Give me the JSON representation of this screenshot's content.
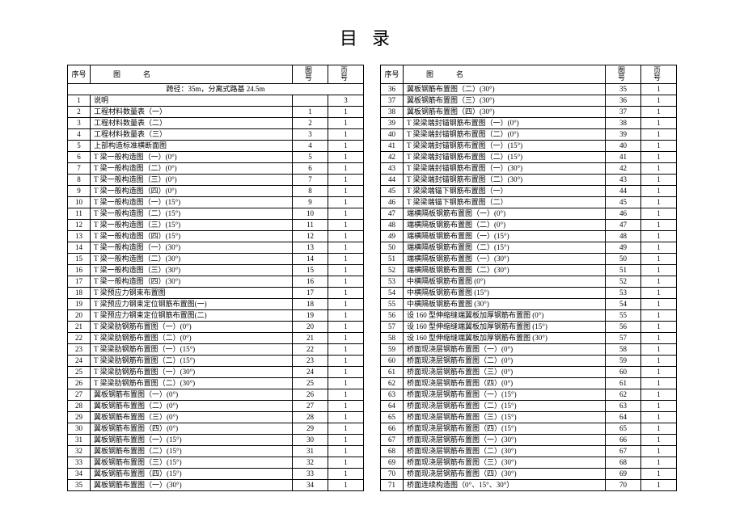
{
  "title": "目录",
  "headers": {
    "seq": "序号",
    "name": "图名",
    "fig": "图号",
    "page": "页号"
  },
  "subheader": "跨径：35m，分离式路基 24.5m",
  "left_rows": [
    {
      "seq": "1",
      "name": "说明",
      "fig": "",
      "page": "3"
    },
    {
      "seq": "2",
      "name": "工程材料数量表（一）",
      "fig": "1",
      "page": "1"
    },
    {
      "seq": "3",
      "name": "工程材料数量表（二）",
      "fig": "2",
      "page": "1"
    },
    {
      "seq": "4",
      "name": "工程材料数量表（三）",
      "fig": "3",
      "page": "1"
    },
    {
      "seq": "5",
      "name": "上部构造标准横断面图",
      "fig": "4",
      "page": "1"
    },
    {
      "seq": "6",
      "name": "T 梁一般构造图（一）(0°)",
      "fig": "5",
      "page": "1"
    },
    {
      "seq": "7",
      "name": "T 梁一般构造图（二）(0°)",
      "fig": "6",
      "page": "1"
    },
    {
      "seq": "8",
      "name": "T 梁一般构造图（三）(0°)",
      "fig": "7",
      "page": "1"
    },
    {
      "seq": "9",
      "name": "T 梁一般构造图（四）(0°)",
      "fig": "8",
      "page": "1"
    },
    {
      "seq": "10",
      "name": "T 梁一般构造图（一）(15°)",
      "fig": "9",
      "page": "1"
    },
    {
      "seq": "11",
      "name": "T 梁一般构造图（二）(15°)",
      "fig": "10",
      "page": "1"
    },
    {
      "seq": "12",
      "name": "T 梁一般构造图（三）(15°)",
      "fig": "11",
      "page": "1"
    },
    {
      "seq": "13",
      "name": "T 梁一般构造图（四）(15°)",
      "fig": "12",
      "page": "1"
    },
    {
      "seq": "14",
      "name": "T 梁一般构造图（一）(30°)",
      "fig": "13",
      "page": "1"
    },
    {
      "seq": "15",
      "name": "T 梁一般构造图（二）(30°)",
      "fig": "14",
      "page": "1"
    },
    {
      "seq": "16",
      "name": "T 梁一般构造图（三）(30°)",
      "fig": "15",
      "page": "1"
    },
    {
      "seq": "17",
      "name": "T 梁一般构造图（四）(30°)",
      "fig": "16",
      "page": "1"
    },
    {
      "seq": "18",
      "name": "T 梁预应力钢束布置图",
      "fig": "17",
      "page": "1"
    },
    {
      "seq": "19",
      "name": "T 梁预应力钢束定位钢筋布置图(一)",
      "fig": "18",
      "page": "1"
    },
    {
      "seq": "20",
      "name": "T 梁预应力钢束定位钢筋布置图(二)",
      "fig": "19",
      "page": "1"
    },
    {
      "seq": "21",
      "name": "T 梁梁肋钢筋布置图（一）(0°)",
      "fig": "20",
      "page": "1"
    },
    {
      "seq": "22",
      "name": "T 梁梁肋钢筋布置图（二）(0°)",
      "fig": "21",
      "page": "1"
    },
    {
      "seq": "23",
      "name": "T 梁梁肋钢筋布置图（一）(15°)",
      "fig": "22",
      "page": "1"
    },
    {
      "seq": "24",
      "name": "T 梁梁肋钢筋布置图（二）(15°)",
      "fig": "23",
      "page": "1"
    },
    {
      "seq": "25",
      "name": "T 梁梁肋钢筋布置图（一）(30°)",
      "fig": "24",
      "page": "1"
    },
    {
      "seq": "26",
      "name": "T 梁梁肋钢筋布置图（二）(30°)",
      "fig": "25",
      "page": "1"
    },
    {
      "seq": "27",
      "name": "翼板钢筋布置图（一）(0°)",
      "fig": "26",
      "page": "1"
    },
    {
      "seq": "28",
      "name": "翼板钢筋布置图（二）(0°)",
      "fig": "27",
      "page": "1"
    },
    {
      "seq": "29",
      "name": "翼板钢筋布置图（三）(0°)",
      "fig": "28",
      "page": "1"
    },
    {
      "seq": "30",
      "name": "翼板钢筋布置图（四）(0°)",
      "fig": "29",
      "page": "1"
    },
    {
      "seq": "31",
      "name": "翼板钢筋布置图（一）(15°)",
      "fig": "30",
      "page": "1"
    },
    {
      "seq": "32",
      "name": "翼板钢筋布置图（二）(15°)",
      "fig": "31",
      "page": "1"
    },
    {
      "seq": "33",
      "name": "翼板钢筋布置图（三）(15°)",
      "fig": "32",
      "page": "1"
    },
    {
      "seq": "34",
      "name": "翼板钢筋布置图（四）(15°)",
      "fig": "33",
      "page": "1"
    },
    {
      "seq": "35",
      "name": "翼板钢筋布置图（一）(30°)",
      "fig": "34",
      "page": "1"
    }
  ],
  "right_rows": [
    {
      "seq": "36",
      "name": "翼板钢筋布置图（二）(30°)",
      "fig": "35",
      "page": "1"
    },
    {
      "seq": "37",
      "name": "翼板钢筋布置图（三）(30°)",
      "fig": "36",
      "page": "1"
    },
    {
      "seq": "38",
      "name": "翼板钢筋布置图（四）(30°)",
      "fig": "37",
      "page": "1"
    },
    {
      "seq": "39",
      "name": "T 梁梁端封锚钢筋布置图（一）(0°)",
      "fig": "38",
      "page": "1"
    },
    {
      "seq": "40",
      "name": "T 梁梁端封锚钢筋布置图（二）(0°)",
      "fig": "39",
      "page": "1"
    },
    {
      "seq": "41",
      "name": "T 梁梁端封锚钢筋布置图（一）(15°)",
      "fig": "40",
      "page": "1"
    },
    {
      "seq": "42",
      "name": "T 梁梁端封锚钢筋布置图（二）(15°)",
      "fig": "41",
      "page": "1"
    },
    {
      "seq": "43",
      "name": "T 梁梁端封锚钢筋布置图（一）(30°)",
      "fig": "42",
      "page": "1"
    },
    {
      "seq": "44",
      "name": "T 梁梁端封锚钢筋布置图（二）(30°)",
      "fig": "43",
      "page": "1"
    },
    {
      "seq": "45",
      "name": "T 梁梁端锚下钢筋布置图（一）",
      "fig": "44",
      "page": "1"
    },
    {
      "seq": "46",
      "name": "T 梁梁端锚下钢筋布置图（二）",
      "fig": "45",
      "page": "1"
    },
    {
      "seq": "47",
      "name": "端横隔板钢筋布置图（一）(0°)",
      "fig": "46",
      "page": "1"
    },
    {
      "seq": "48",
      "name": "端横隔板钢筋布置图（二）(0°)",
      "fig": "47",
      "page": "1"
    },
    {
      "seq": "49",
      "name": "端横隔板钢筋布置图（一）(15°)",
      "fig": "48",
      "page": "1"
    },
    {
      "seq": "50",
      "name": "端横隔板钢筋布置图（二）(15°)",
      "fig": "49",
      "page": "1"
    },
    {
      "seq": "51",
      "name": "端横隔板钢筋布置图（一）(30°)",
      "fig": "50",
      "page": "1"
    },
    {
      "seq": "52",
      "name": "端横隔板钢筋布置图（二）(30°)",
      "fig": "51",
      "page": "1"
    },
    {
      "seq": "53",
      "name": "中横隔板钢筋布置图 (0°)",
      "fig": "52",
      "page": "1"
    },
    {
      "seq": "54",
      "name": "中横隔板钢筋布置图 (15°)",
      "fig": "53",
      "page": "1"
    },
    {
      "seq": "55",
      "name": "中横隔板钢筋布置图 (30°)",
      "fig": "54",
      "page": "1"
    },
    {
      "seq": "56",
      "name": "设 160 型伸缩缝端翼板加厚钢筋布置图 (0°)",
      "fig": "55",
      "page": "1"
    },
    {
      "seq": "57",
      "name": "设 160 型伸缩缝端翼板加厚钢筋布置图 (15°)",
      "fig": "56",
      "page": "1"
    },
    {
      "seq": "58",
      "name": "设 160 型伸缩缝端翼板加厚钢筋布置图 (30°)",
      "fig": "57",
      "page": "1"
    },
    {
      "seq": "59",
      "name": "桥面现浇层钢筋布置图（一）(0°)",
      "fig": "58",
      "page": "1"
    },
    {
      "seq": "60",
      "name": "桥面现浇层钢筋布置图（二）(0°)",
      "fig": "59",
      "page": "1"
    },
    {
      "seq": "61",
      "name": "桥面现浇层钢筋布置图（三）(0°)",
      "fig": "60",
      "page": "1"
    },
    {
      "seq": "62",
      "name": "桥面现浇层钢筋布置图（四）(0°)",
      "fig": "61",
      "page": "1"
    },
    {
      "seq": "63",
      "name": "桥面现浇层钢筋布置图（一）(15°)",
      "fig": "62",
      "page": "1"
    },
    {
      "seq": "64",
      "name": "桥面现浇层钢筋布置图（二）(15°)",
      "fig": "63",
      "page": "1"
    },
    {
      "seq": "65",
      "name": "桥面现浇层钢筋布置图（三）(15°)",
      "fig": "64",
      "page": "1"
    },
    {
      "seq": "66",
      "name": "桥面现浇层钢筋布置图（四）(15°)",
      "fig": "65",
      "page": "1"
    },
    {
      "seq": "67",
      "name": "桥面现浇层钢筋布置图（一）(30°)",
      "fig": "66",
      "page": "1"
    },
    {
      "seq": "68",
      "name": "桥面现浇层钢筋布置图（二）(30°)",
      "fig": "67",
      "page": "1"
    },
    {
      "seq": "69",
      "name": "桥面现浇层钢筋布置图（三）(30°)",
      "fig": "68",
      "page": "1"
    },
    {
      "seq": "70",
      "name": "桥面现浇层钢筋布置图（四）(30°)",
      "fig": "69",
      "page": "1"
    },
    {
      "seq": "71",
      "name": "桥面连续构造图（0°、15°、30°）",
      "fig": "70",
      "page": "1"
    }
  ]
}
